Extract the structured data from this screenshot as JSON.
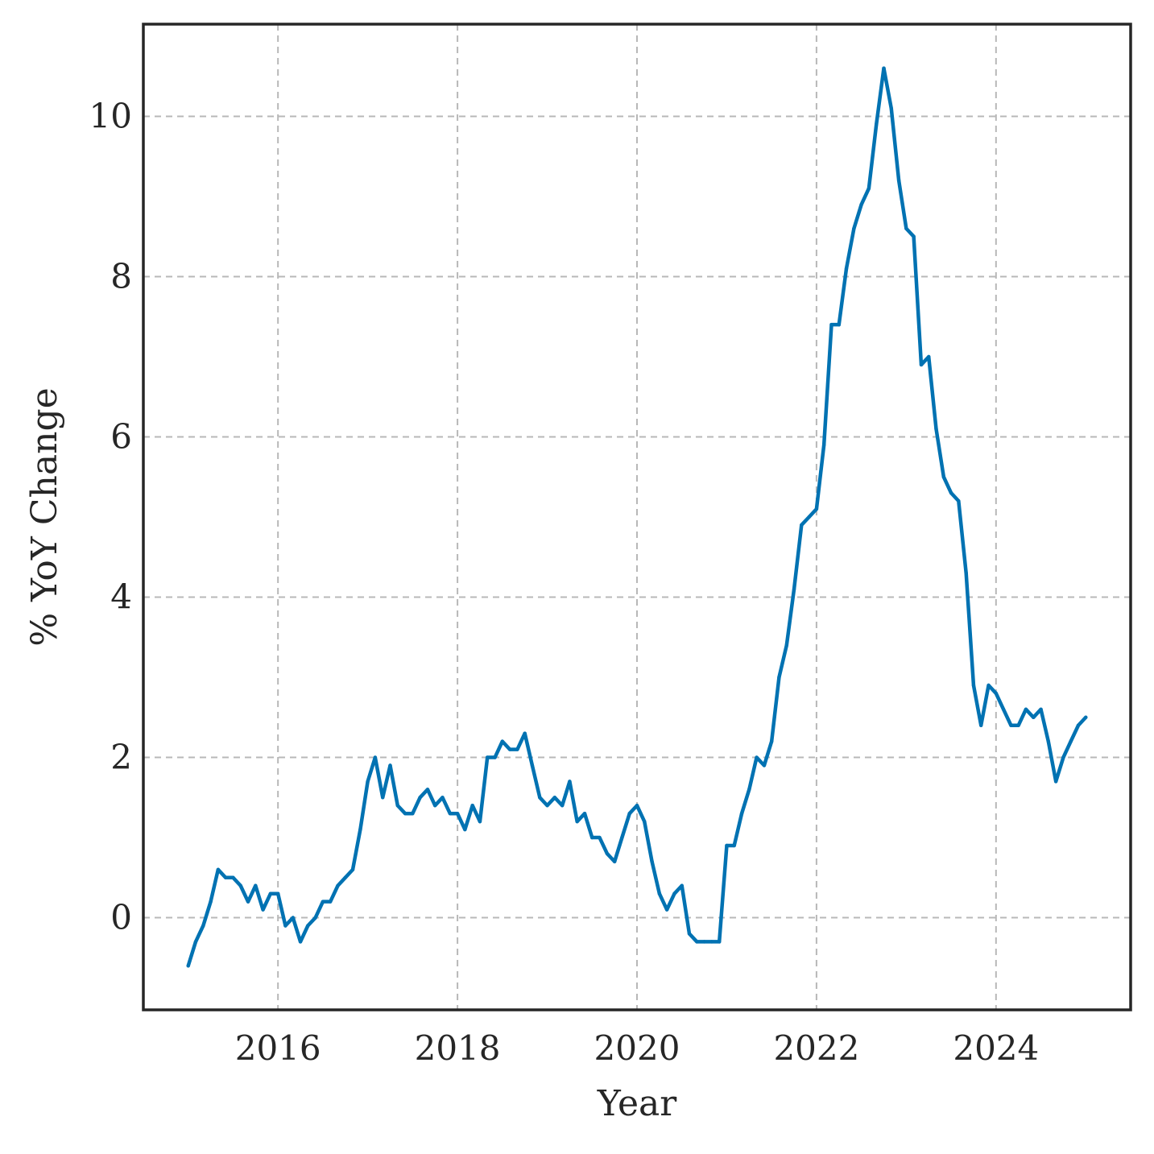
{
  "chart_data": {
    "type": "line",
    "title": "",
    "xlabel": "Year",
    "ylabel": "% YoY Change",
    "grid": true,
    "xlim": [
      2014.5,
      2025.5
    ],
    "ylim": [
      -1.15,
      11.15
    ],
    "x_ticks": [
      2016,
      2018,
      2020,
      2022,
      2024
    ],
    "x_tick_labels": [
      "2016",
      "2018",
      "2020",
      "2022",
      "2024"
    ],
    "y_ticks": [
      0,
      2,
      4,
      6,
      8,
      10
    ],
    "y_tick_labels": [
      "0",
      "2",
      "4",
      "6",
      "8",
      "10"
    ],
    "colors": {
      "line": "#0072b2",
      "frame": "#262626",
      "grid": "#b8b8b8"
    },
    "series": [
      {
        "x": [
          2015.0,
          2015.083,
          2015.167,
          2015.25,
          2015.333,
          2015.417,
          2015.5,
          2015.583,
          2015.667,
          2015.75,
          2015.833,
          2015.917,
          2016.0,
          2016.083,
          2016.167,
          2016.25,
          2016.333,
          2016.417,
          2016.5,
          2016.583,
          2016.667,
          2016.75,
          2016.833,
          2016.917,
          2017.0,
          2017.083,
          2017.167,
          2017.25,
          2017.333,
          2017.417,
          2017.5,
          2017.583,
          2017.667,
          2017.75,
          2017.833,
          2017.917,
          2018.0,
          2018.083,
          2018.167,
          2018.25,
          2018.333,
          2018.417,
          2018.5,
          2018.583,
          2018.667,
          2018.75,
          2018.833,
          2018.917,
          2019.0,
          2019.083,
          2019.167,
          2019.25,
          2019.333,
          2019.417,
          2019.5,
          2019.583,
          2019.667,
          2019.75,
          2019.833,
          2019.917,
          2020.0,
          2020.083,
          2020.167,
          2020.25,
          2020.333,
          2020.417,
          2020.5,
          2020.583,
          2020.667,
          2020.75,
          2020.833,
          2020.917,
          2021.0,
          2021.083,
          2021.167,
          2021.25,
          2021.333,
          2021.417,
          2021.5,
          2021.583,
          2021.667,
          2021.75,
          2021.833,
          2021.917,
          2022.0,
          2022.083,
          2022.167,
          2022.25,
          2022.333,
          2022.417,
          2022.5,
          2022.583,
          2022.667,
          2022.75,
          2022.833,
          2022.917,
          2023.0,
          2023.083,
          2023.167,
          2023.25,
          2023.333,
          2023.417,
          2023.5,
          2023.583,
          2023.667,
          2023.75,
          2023.833,
          2023.917,
          2024.0,
          2024.083,
          2024.167,
          2024.25,
          2024.333,
          2024.417,
          2024.5,
          2024.583,
          2024.667,
          2024.75,
          2024.833,
          2024.917,
          2025.0
        ],
        "y": [
          -0.6,
          -0.3,
          -0.1,
          0.2,
          0.6,
          0.5,
          0.5,
          0.4,
          0.2,
          0.4,
          0.1,
          0.3,
          0.3,
          -0.1,
          0.0,
          -0.3,
          -0.1,
          0.0,
          0.2,
          0.2,
          0.4,
          0.5,
          0.6,
          1.1,
          1.7,
          2.0,
          1.5,
          1.9,
          1.4,
          1.3,
          1.3,
          1.5,
          1.6,
          1.4,
          1.5,
          1.3,
          1.3,
          1.1,
          1.4,
          1.2,
          2.0,
          2.0,
          2.2,
          2.1,
          2.1,
          2.3,
          1.9,
          1.5,
          1.4,
          1.5,
          1.4,
          1.7,
          1.2,
          1.3,
          1.0,
          1.0,
          0.8,
          0.7,
          1.0,
          1.3,
          1.4,
          1.2,
          0.7,
          0.3,
          0.1,
          0.3,
          0.4,
          -0.2,
          -0.3,
          -0.3,
          -0.3,
          -0.3,
          0.9,
          0.9,
          1.3,
          1.6,
          2.0,
          1.9,
          2.2,
          3.0,
          3.4,
          4.1,
          4.9,
          5.0,
          5.1,
          5.9,
          7.4,
          7.4,
          8.1,
          8.6,
          8.9,
          9.1,
          9.9,
          10.6,
          10.1,
          9.2,
          8.6,
          8.5,
          6.9,
          7.0,
          6.1,
          5.5,
          5.3,
          5.2,
          4.3,
          2.9,
          2.4,
          2.9,
          2.8,
          2.6,
          2.4,
          2.4,
          2.6,
          2.5,
          2.6,
          2.2,
          1.7,
          2.0,
          2.2,
          2.4,
          2.5
        ]
      }
    ]
  }
}
